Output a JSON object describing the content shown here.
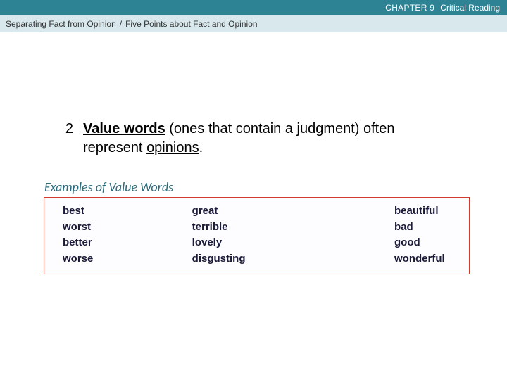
{
  "colors": {
    "topbar_bg": "#2d8294",
    "breadcrumb_bg": "#d9e8ec",
    "box_border": "#d13a2f",
    "keyword": "#1a1a3a",
    "examples_label": "#2a6b7c"
  },
  "topbar": {
    "chapter_label": "CHAPTER 9",
    "chapter_title": "Critical Reading"
  },
  "breadcrumb": {
    "part1": "Separating Fact from Opinion",
    "sep": "/",
    "part2": "Five Points about Fact and Opinion"
  },
  "point": {
    "number": "2",
    "keyword": "Value words",
    "mid_a": " (ones that contain a judgment) often represent ",
    "opinions": "opinions",
    "tail": "."
  },
  "examples_label": "Examples of Value Words",
  "words": {
    "col1": [
      "best",
      "worst",
      "better",
      "worse"
    ],
    "col2": [
      "great",
      "terrible",
      "lovely",
      "disgusting"
    ],
    "col3": [
      "beautiful",
      "bad",
      "good",
      "wonderful"
    ]
  }
}
